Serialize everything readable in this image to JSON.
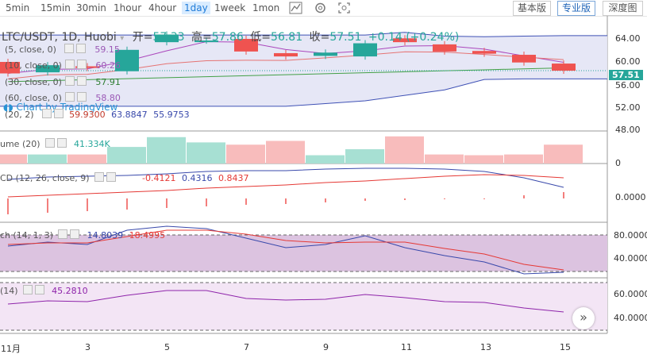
{
  "toolbar": {
    "timeframes": [
      "5min",
      "15min",
      "30min",
      "1hour",
      "4hour",
      "1day",
      "1week",
      "1mon"
    ],
    "active_timeframe": "1day",
    "version_basic": "基本版",
    "version_pro": "专业版",
    "version_depth": "深度图"
  },
  "legend": {
    "symbol": "LTC/USDT, 1D, Huobi",
    "open_label": "开=",
    "open_value": "57.33",
    "high_label": "高=",
    "high_value": "57.86",
    "low_label": "低=",
    "low_value": "56.81",
    "close_label": "收=",
    "close_value": "57.51",
    "change": "+0.14 (+0.24%)",
    "ma5": "(5, close, 0)",
    "ma5_value": "59.15",
    "ma10": "(10, close, 0)",
    "ma10_value": "60.26",
    "ma30": "(30, close, 0)",
    "ma30_value": "57.91",
    "ma60": "(60, close, 0)",
    "ma60_value": "58.80",
    "bb": "(20, 2)",
    "bb_mid": "59.9300",
    "bb_upper": "63.8847",
    "bb_lower": "55.9753",
    "watermark": "Chart by TradingView",
    "volume": "ume (20)",
    "volume_value": "41.334K",
    "macd": "CD (12, 26, close, 9)",
    "macd_hist": "-0.4121",
    "macd_line": "0.4316",
    "macd_signal": "0.8437",
    "stoch": "ch (14, 1, 3)",
    "stoch_k": "14.8039",
    "stoch_d": "18.4995",
    "rsi": "(14)",
    "rsi_value": "45.2810"
  },
  "price_axis": [
    "64.00",
    "60.00",
    "56.00",
    "52.00",
    "48.00"
  ],
  "price_axis_partial": [
    "64.00",
    "60.00",
    "56.00",
    "52.00",
    "48.00"
  ],
  "current_price": "57.51",
  "volume_axis": [
    "0"
  ],
  "macd_axis": [
    "0.0000"
  ],
  "stoch_axis": [
    "80.0000",
    "40.0000"
  ],
  "rsi_axis": [
    "60.0000",
    "40.0000"
  ],
  "x_axis": [
    "11月",
    "3",
    "5",
    "7",
    "9",
    "11",
    "13",
    "15"
  ],
  "colors": {
    "up": "#26a69a",
    "down": "#ef5350",
    "upvol": "#a7e0d3",
    "downvol": "#f8bcbc"
  },
  "chart_data": {
    "type": "candlestick",
    "x": [
      "11/1",
      "11/2",
      "11/3",
      "11/4",
      "11/5",
      "11/6",
      "11/7",
      "11/8",
      "11/9",
      "11/10",
      "11/11",
      "11/12",
      "11/13",
      "11/14",
      "11/15"
    ],
    "open": [
      59.1,
      57.2,
      58.3,
      57.4,
      62.7,
      63.0,
      63.3,
      60.7,
      60.2,
      60.1,
      63.4,
      62.3,
      61.1,
      60.4,
      58.8
    ],
    "close": [
      57.0,
      58.5,
      58.0,
      61.3,
      64.1,
      63.0,
      61.0,
      60.1,
      60.8,
      62.5,
      62.7,
      61.0,
      60.6,
      59.0,
      57.5
    ],
    "volume_k": [
      12,
      12,
      12,
      22,
      35,
      28,
      25,
      30,
      11,
      19,
      36,
      12,
      11,
      12,
      25
    ],
    "bb_upper": [
      64,
      64,
      64,
      64,
      64,
      64,
      64,
      64,
      64,
      64,
      64.5,
      63.8,
      63.7,
      63.8,
      63.9
    ],
    "bb_lower": [
      51,
      51,
      51,
      51,
      51,
      51,
      51,
      51,
      51.5,
      52,
      53,
      54,
      55.9,
      56,
      56
    ],
    "ylim": [
      48,
      66
    ]
  }
}
